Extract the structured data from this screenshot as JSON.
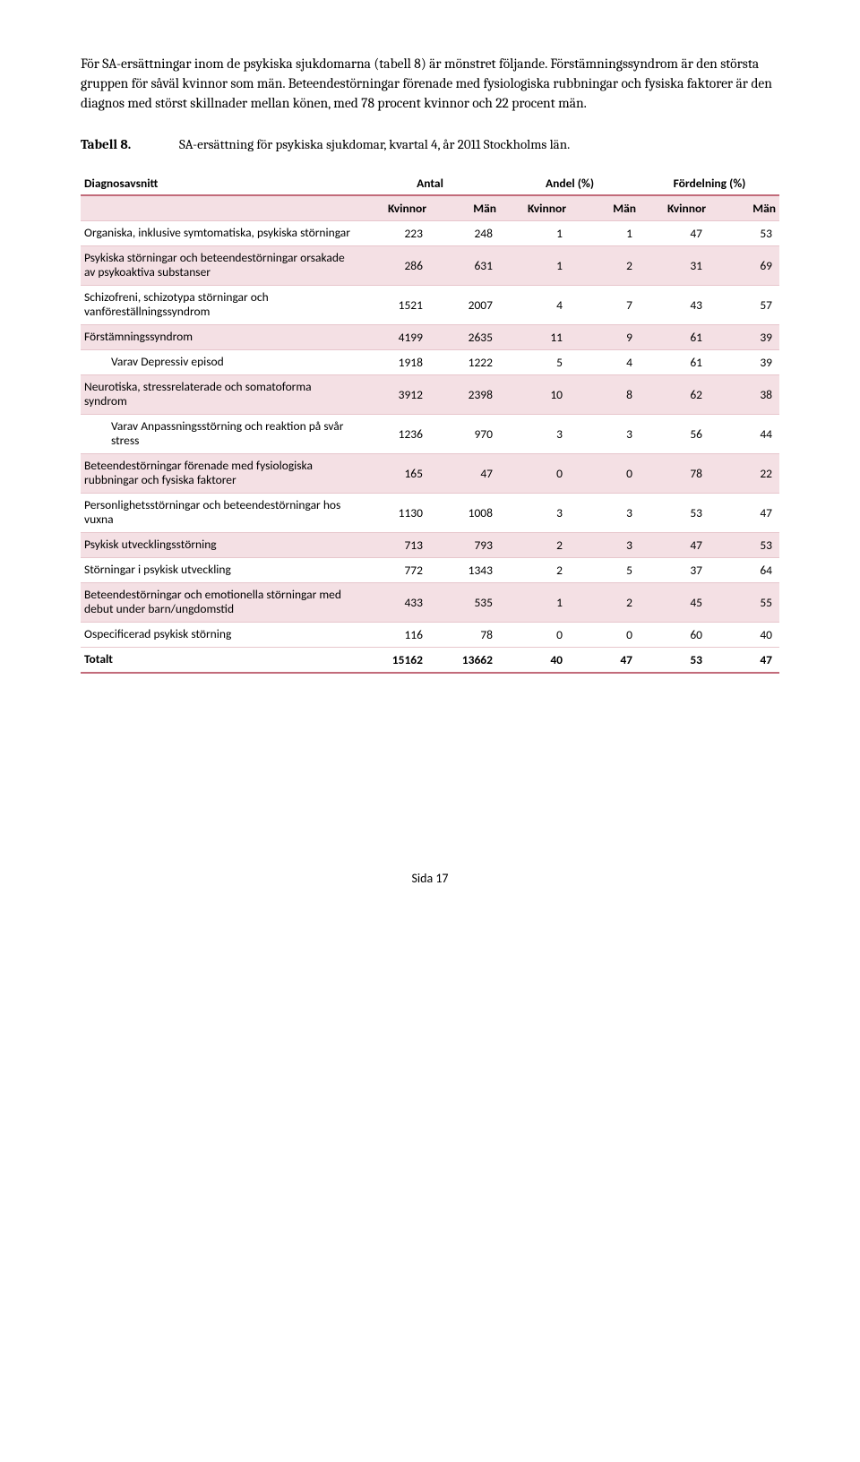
{
  "intro": "För SA-ersättningar inom de psykiska sjukdomarna (tabell 8) är mönstret följande. Förstämningssyndrom är den största gruppen för såväl kvinnor som män. Beteendestörningar förenade med fysiologiska rubbningar och fysiska faktorer är den diagnos med störst skillnader mellan könen, med 78 procent kvinnor och 22 procent män.",
  "caption": {
    "label": "Tabell 8.",
    "text": "SA-ersättning för psykiska sjukdomar, kvartal 4, år 2011 Stockholms län."
  },
  "table": {
    "header_diag": "Diagnosavsnitt",
    "groups": [
      "Antal",
      "Andel (%)",
      "Fördelning (%)"
    ],
    "subs": [
      "Kvinnor",
      "Män",
      "Kvinnor",
      "Män",
      "Kvinnor",
      "Män"
    ],
    "colors": {
      "shade": "#f4e0e4",
      "border": "#c26b7a",
      "row_border": "#e7c6cc"
    },
    "rows": [
      {
        "label": "Organiska, inklusive symtomatiska, psykiska störningar",
        "vals": [
          223,
          248,
          1,
          1,
          47,
          53
        ],
        "shade": false,
        "indent": false
      },
      {
        "label": "Psykiska störningar och beteendestörningar orsakade av psykoaktiva substanser",
        "vals": [
          286,
          631,
          1,
          2,
          31,
          69
        ],
        "shade": true,
        "indent": false
      },
      {
        "label": "Schizofreni, schizotypa störningar och vanföreställningssyndrom",
        "vals": [
          1521,
          2007,
          4,
          7,
          43,
          57
        ],
        "shade": false,
        "indent": false
      },
      {
        "label": "Förstämningssyndrom",
        "vals": [
          4199,
          2635,
          11,
          9,
          61,
          39
        ],
        "shade": true,
        "indent": false
      },
      {
        "label": "Varav Depressiv episod",
        "vals": [
          1918,
          1222,
          5,
          4,
          61,
          39
        ],
        "shade": false,
        "indent": true
      },
      {
        "label": "Neurotiska, stressrelaterade och somatoforma syndrom",
        "vals": [
          3912,
          2398,
          10,
          8,
          62,
          38
        ],
        "shade": true,
        "indent": false
      },
      {
        "label": "Varav Anpassningsstörning och reaktion på svår stress",
        "vals": [
          1236,
          970,
          3,
          3,
          56,
          44
        ],
        "shade": false,
        "indent": true
      },
      {
        "label": "Beteendestörningar förenade med fysiologiska rubbningar och fysiska faktorer",
        "vals": [
          165,
          47,
          0,
          0,
          78,
          22
        ],
        "shade": true,
        "indent": false
      },
      {
        "label": "Personlighetsstörningar och beteendestörningar hos vuxna",
        "vals": [
          1130,
          1008,
          3,
          3,
          53,
          47
        ],
        "shade": false,
        "indent": false
      },
      {
        "label": "Psykisk utvecklingsstörning",
        "vals": [
          713,
          793,
          2,
          3,
          47,
          53
        ],
        "shade": true,
        "indent": false
      },
      {
        "label": "Störningar i psykisk utveckling",
        "vals": [
          772,
          1343,
          2,
          5,
          37,
          64
        ],
        "shade": false,
        "indent": false
      },
      {
        "label": "Beteendestörningar och emotionella störningar med debut under barn/ungdomstid",
        "vals": [
          433,
          535,
          1,
          2,
          45,
          55
        ],
        "shade": true,
        "indent": false
      },
      {
        "label": "Ospecificerad psykisk störning",
        "vals": [
          116,
          78,
          0,
          0,
          60,
          40
        ],
        "shade": false,
        "indent": false
      }
    ],
    "total": {
      "label": "Totalt",
      "vals": [
        15162,
        13662,
        40,
        47,
        53,
        47
      ]
    }
  },
  "footer": "Sida 17"
}
